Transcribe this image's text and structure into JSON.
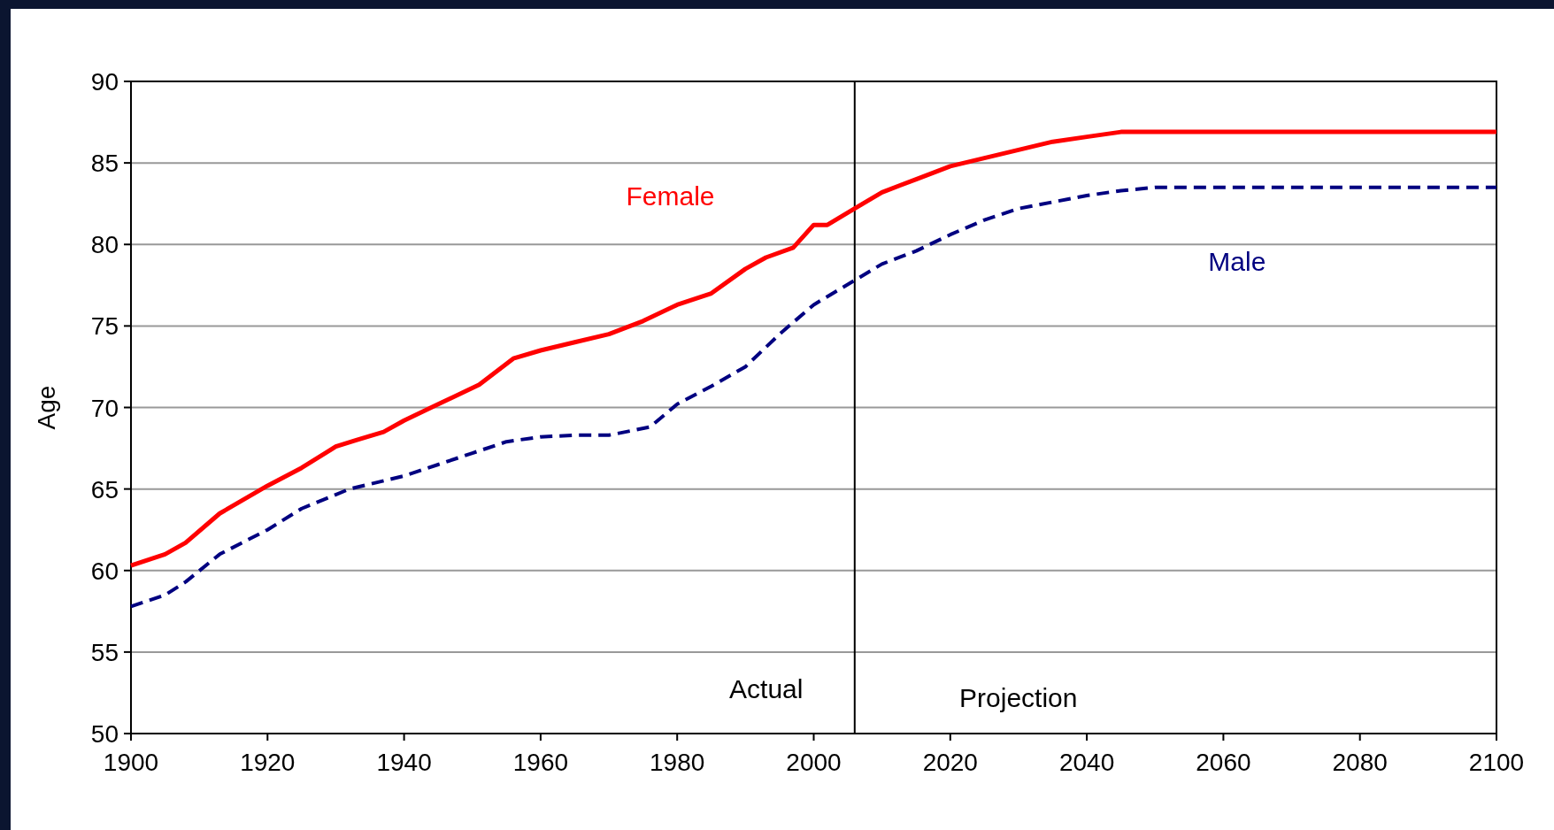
{
  "chart_data": {
    "type": "line",
    "ylabel": "Age",
    "xlim": [
      1900,
      2100
    ],
    "xticks": [
      1900,
      1920,
      1940,
      1960,
      1980,
      2000,
      2020,
      2040,
      2060,
      2080,
      2100
    ],
    "ylim": [
      50,
      90
    ],
    "yticks": [
      50,
      55,
      60,
      65,
      70,
      75,
      80,
      85,
      90
    ],
    "grid": "y",
    "series": [
      {
        "name": "Female",
        "color": "#ff0000",
        "line_style": "solid",
        "x": [
          1900,
          1905,
          1908,
          1913,
          1920,
          1925,
          1930,
          1933,
          1937,
          1940,
          1945,
          1951,
          1956,
          1960,
          1965,
          1970,
          1975,
          1980,
          1985,
          1990,
          1993,
          1997,
          2000,
          2002,
          2006,
          2010,
          2015,
          2020,
          2025,
          2030,
          2035,
          2040,
          2045,
          2100
        ],
        "values": [
          60.3,
          61,
          61.7,
          63.5,
          65.2,
          66.3,
          67.6,
          68,
          68.5,
          69.2,
          70.2,
          71.4,
          73,
          73.5,
          74,
          74.5,
          75.3,
          76.3,
          77,
          78.5,
          79.2,
          79.8,
          81.2,
          81.2,
          82.2,
          83.2,
          84,
          84.8,
          85.3,
          85.8,
          86.3,
          86.6,
          86.9,
          86.9
        ]
      },
      {
        "name": "Male",
        "color": "#000080",
        "line_style": "dashed",
        "x": [
          1900,
          1905,
          1908,
          1913,
          1920,
          1925,
          1932,
          1940,
          1945,
          1950,
          1955,
          1960,
          1965,
          1970,
          1976,
          1980,
          1985,
          1990,
          1995,
          2000,
          2006,
          2010,
          2015,
          2020,
          2025,
          2030,
          2035,
          2040,
          2045,
          2050,
          2100
        ],
        "values": [
          57.8,
          58.5,
          59.3,
          61,
          62.5,
          63.8,
          65,
          65.8,
          66.5,
          67.2,
          67.9,
          68.2,
          68.3,
          68.3,
          68.8,
          70.2,
          71.3,
          72.5,
          74.5,
          76.3,
          77.8,
          78.8,
          79.6,
          80.6,
          81.5,
          82.2,
          82.6,
          83,
          83.3,
          83.5,
          83.5
        ]
      }
    ],
    "ref_lines": [
      {
        "axis": "x",
        "value": 2006,
        "color": "#000000"
      }
    ],
    "annotations": [
      "Actual",
      "Projection"
    ]
  }
}
